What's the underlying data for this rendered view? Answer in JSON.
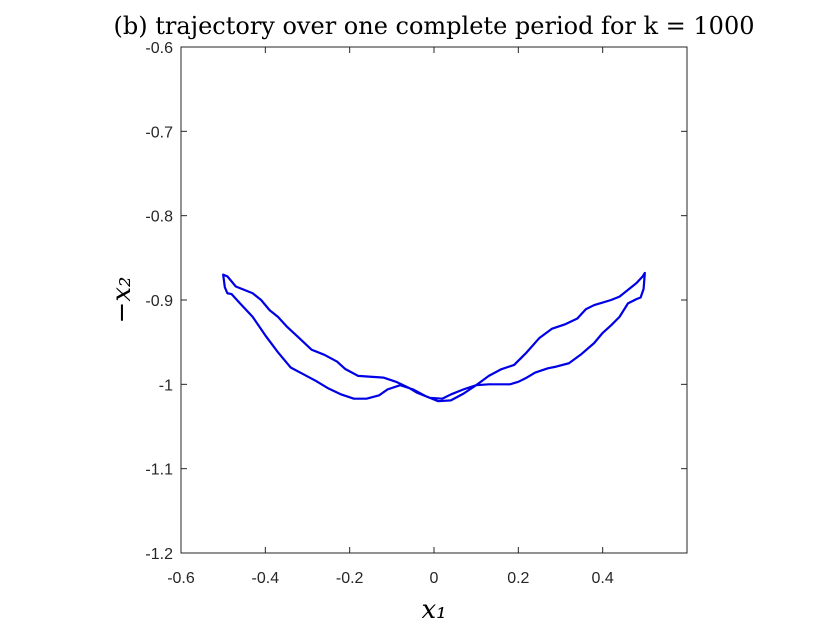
{
  "chart_data": {
    "type": "line",
    "title": "(b) trajectory over one complete period for k = 1000",
    "xlabel": "x₁",
    "ylabel": "−x₂",
    "xlim": [
      -0.6,
      0.6
    ],
    "ylim": [
      -1.2,
      -0.6
    ],
    "xticks": [
      -0.6,
      -0.4,
      -0.2,
      0,
      0.2,
      0.4
    ],
    "xtick_labels": [
      "-0.6",
      "-0.4",
      "-0.2",
      "0",
      "0.2",
      "0.4"
    ],
    "yticks": [
      -0.6,
      -0.7,
      -0.8,
      -0.9,
      -1.0,
      -1.1,
      -1.2
    ],
    "ytick_labels": [
      "-0.6",
      "-0.7",
      "-0.8",
      "-0.9",
      "-1",
      "-1.1",
      "-1.2"
    ],
    "grid": false,
    "box": true,
    "series_color": "#0000E6",
    "series": [
      {
        "x": [
          0.5,
          0.497,
          0.49,
          0.48,
          0.46,
          0.44,
          0.42,
          0.4,
          0.38,
          0.35,
          0.32,
          0.29,
          0.27,
          0.24,
          0.22,
          0.2,
          0.18,
          0.16,
          0.13,
          0.1,
          0.07,
          0.04,
          0.02,
          -0.01,
          -0.04,
          -0.06,
          -0.09,
          -0.12,
          -0.15,
          -0.18,
          -0.21,
          -0.23,
          -0.26,
          -0.29,
          -0.32,
          -0.35,
          -0.37,
          -0.39,
          -0.41,
          -0.43,
          -0.45,
          -0.47,
          -0.49,
          -0.5,
          -0.496,
          -0.49,
          -0.48,
          -0.46,
          -0.43,
          -0.4,
          -0.37,
          -0.34,
          -0.31,
          -0.28,
          -0.25,
          -0.22,
          -0.19,
          -0.16,
          -0.13,
          -0.11,
          -0.08,
          -0.05,
          -0.02,
          0.01,
          0.04,
          0.07,
          0.1,
          0.13,
          0.16,
          0.19,
          0.22,
          0.25,
          0.28,
          0.31,
          0.34,
          0.36,
          0.38,
          0.4,
          0.42,
          0.44,
          0.46,
          0.48,
          0.495,
          0.5
        ],
        "y": [
          -0.868,
          -0.887,
          -0.897,
          -0.899,
          -0.904,
          -0.92,
          -0.93,
          -0.939,
          -0.951,
          -0.964,
          -0.975,
          -0.979,
          -0.981,
          -0.986,
          -0.992,
          -0.997,
          -1.0,
          -1.0,
          -1.0,
          -1.001,
          -1.006,
          -1.012,
          -1.017,
          -1.016,
          -1.01,
          -1.004,
          -0.997,
          -0.992,
          -0.991,
          -0.99,
          -0.982,
          -0.973,
          -0.965,
          -0.959,
          -0.945,
          -0.931,
          -0.92,
          -0.912,
          -0.9,
          -0.892,
          -0.888,
          -0.884,
          -0.872,
          -0.87,
          -0.885,
          -0.892,
          -0.893,
          -0.904,
          -0.92,
          -0.942,
          -0.962,
          -0.98,
          -0.988,
          -0.996,
          -1.005,
          -1.012,
          -1.017,
          -1.017,
          -1.013,
          -1.006,
          -1.001,
          -1.006,
          -1.014,
          -1.02,
          -1.019,
          -1.011,
          -1.001,
          -0.99,
          -0.982,
          -0.977,
          -0.962,
          -0.945,
          -0.934,
          -0.929,
          -0.922,
          -0.911,
          -0.906,
          -0.903,
          -0.9,
          -0.896,
          -0.888,
          -0.88,
          -0.872,
          -0.868
        ]
      }
    ]
  }
}
